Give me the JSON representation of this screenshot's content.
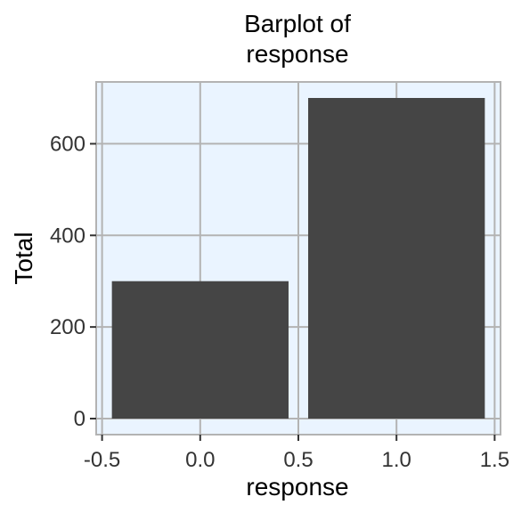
{
  "chart_data": {
    "type": "bar",
    "title_lines": [
      "Barplot of",
      "response"
    ],
    "xlabel": "response",
    "ylabel": "Total",
    "x_ticks": [
      "-0.5",
      "0.0",
      "0.5",
      "1.0",
      "1.5"
    ],
    "y_ticks": [
      "0",
      "200",
      "400",
      "600"
    ],
    "xlim": [
      -0.53,
      1.53
    ],
    "ylim": [
      -35,
      735
    ],
    "bars": [
      {
        "x": 0.0,
        "width": 0.9,
        "value": 300
      },
      {
        "x": 1.0,
        "width": 0.9,
        "value": 700
      }
    ],
    "grid": true,
    "colors": {
      "bar": "#454545",
      "panel_bg": "#eaf4ff",
      "grid": "#b3b3b3",
      "tick": "#333333"
    }
  }
}
